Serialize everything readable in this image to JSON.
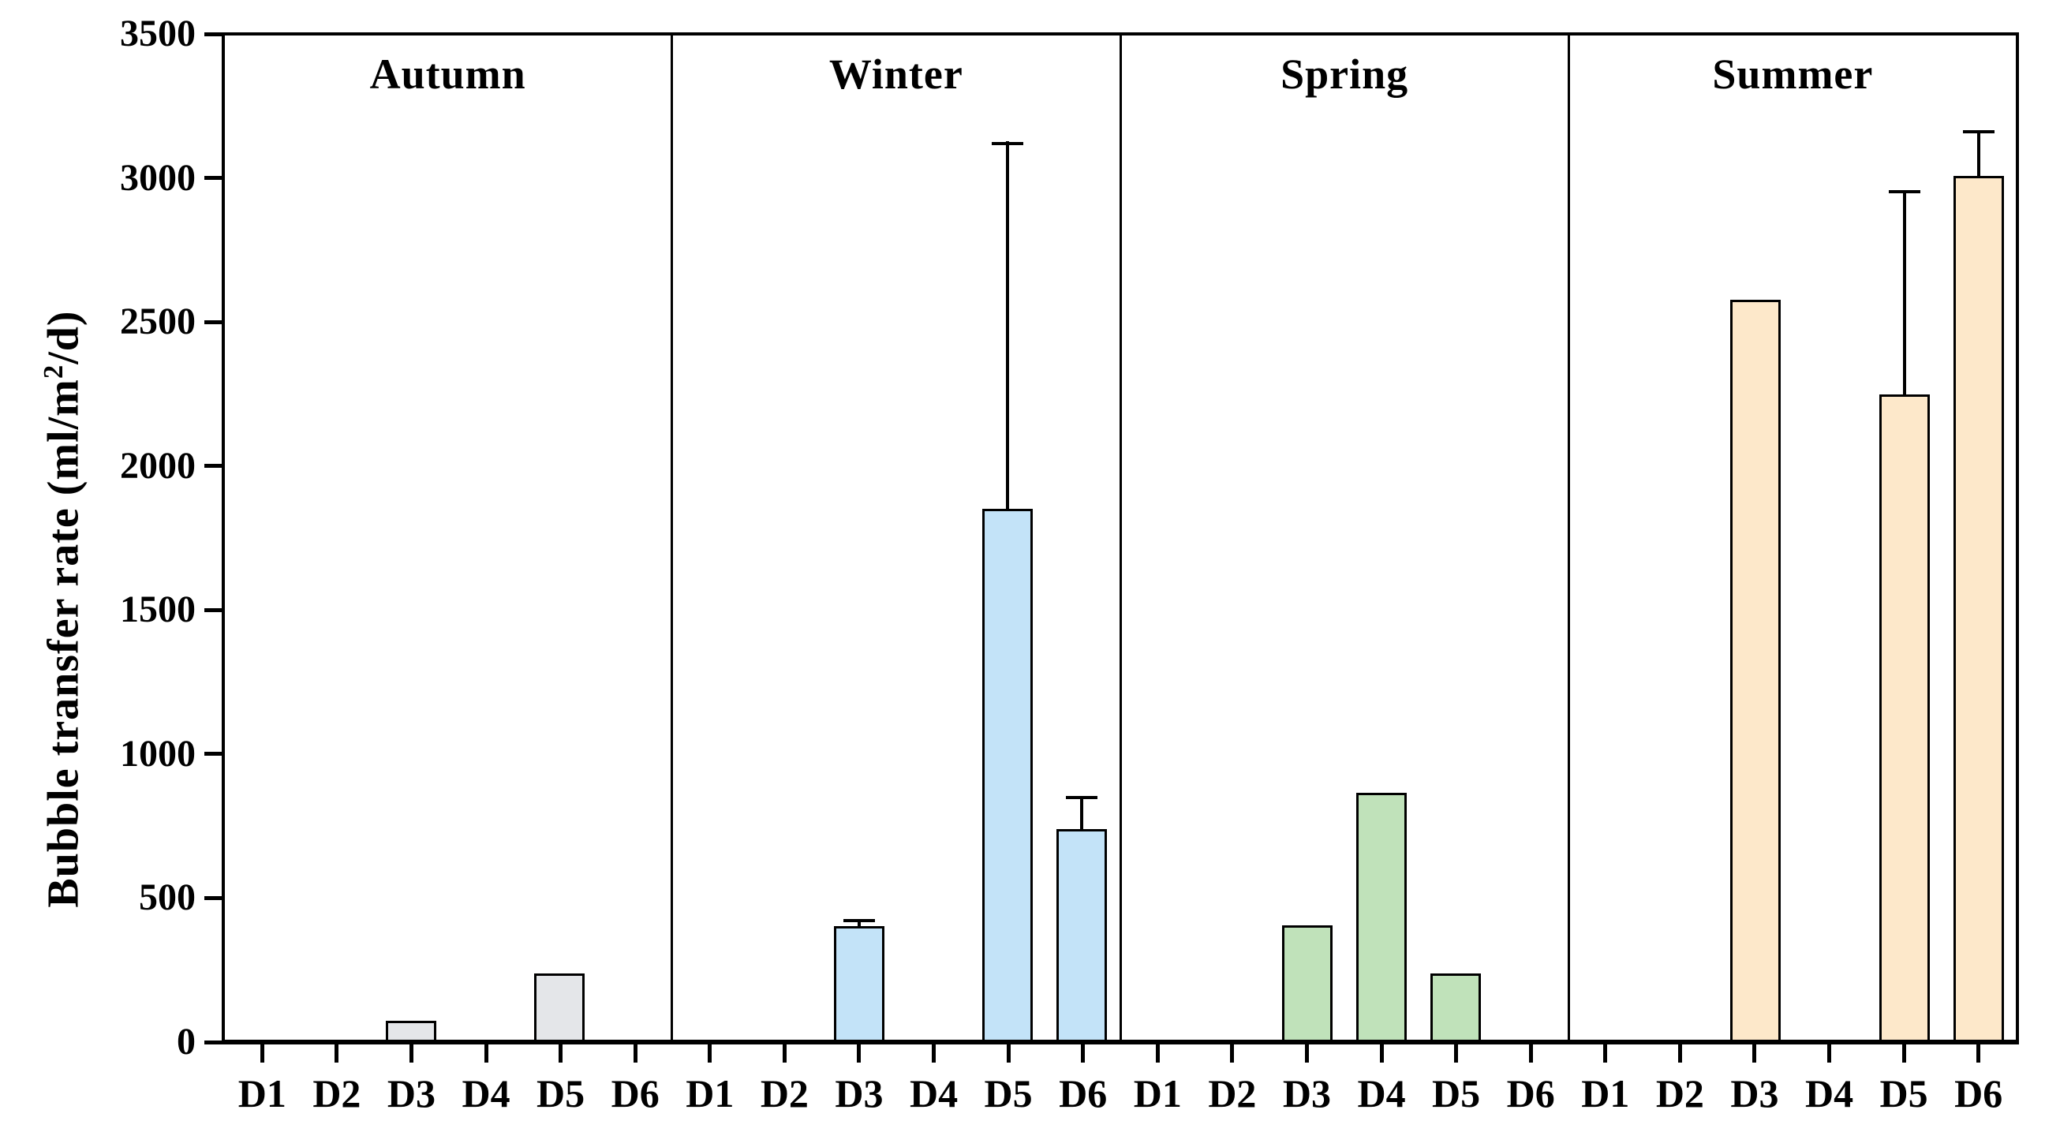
{
  "figure": {
    "ylabel_pre": "Bubble transfer rate (ml/m",
    "ylabel_sup": "2",
    "ylabel_post": "/d)"
  },
  "chart_data": {
    "type": "bar",
    "title": "",
    "xlabel": "",
    "ylabel": "Bubble transfer rate (ml/m2/d)",
    "ylim": [
      0,
      3500
    ],
    "yticks": [
      0,
      500,
      1000,
      1500,
      2000,
      2500,
      3000,
      3500
    ],
    "categories": [
      "D1",
      "D2",
      "D3",
      "D4",
      "D5",
      "D6"
    ],
    "grid": false,
    "legend": "none",
    "ink_color": "#000000",
    "background": "#ffffff",
    "panels": [
      {
        "season": "Autumn",
        "fill": "#e4e6e9",
        "values": [
          0,
          0,
          65,
          0,
          230,
          0
        ],
        "errors_plus": [
          0,
          0,
          0,
          0,
          0,
          0
        ]
      },
      {
        "season": "Winter",
        "fill": "#c3e3f8",
        "values": [
          0,
          0,
          395,
          0,
          1850,
          735
        ],
        "errors_plus": [
          0,
          0,
          25,
          0,
          1280,
          115
        ]
      },
      {
        "season": "Spring",
        "fill": "#c0e2ba",
        "values": [
          0,
          0,
          400,
          860,
          230,
          0
        ],
        "errors_plus": [
          0,
          0,
          0,
          0,
          0,
          0
        ]
      },
      {
        "season": "Summer",
        "fill": "#fde8ca",
        "values": [
          0,
          0,
          2580,
          0,
          2250,
          3010
        ],
        "errors_plus": [
          0,
          0,
          0,
          0,
          710,
          160
        ]
      }
    ]
  }
}
